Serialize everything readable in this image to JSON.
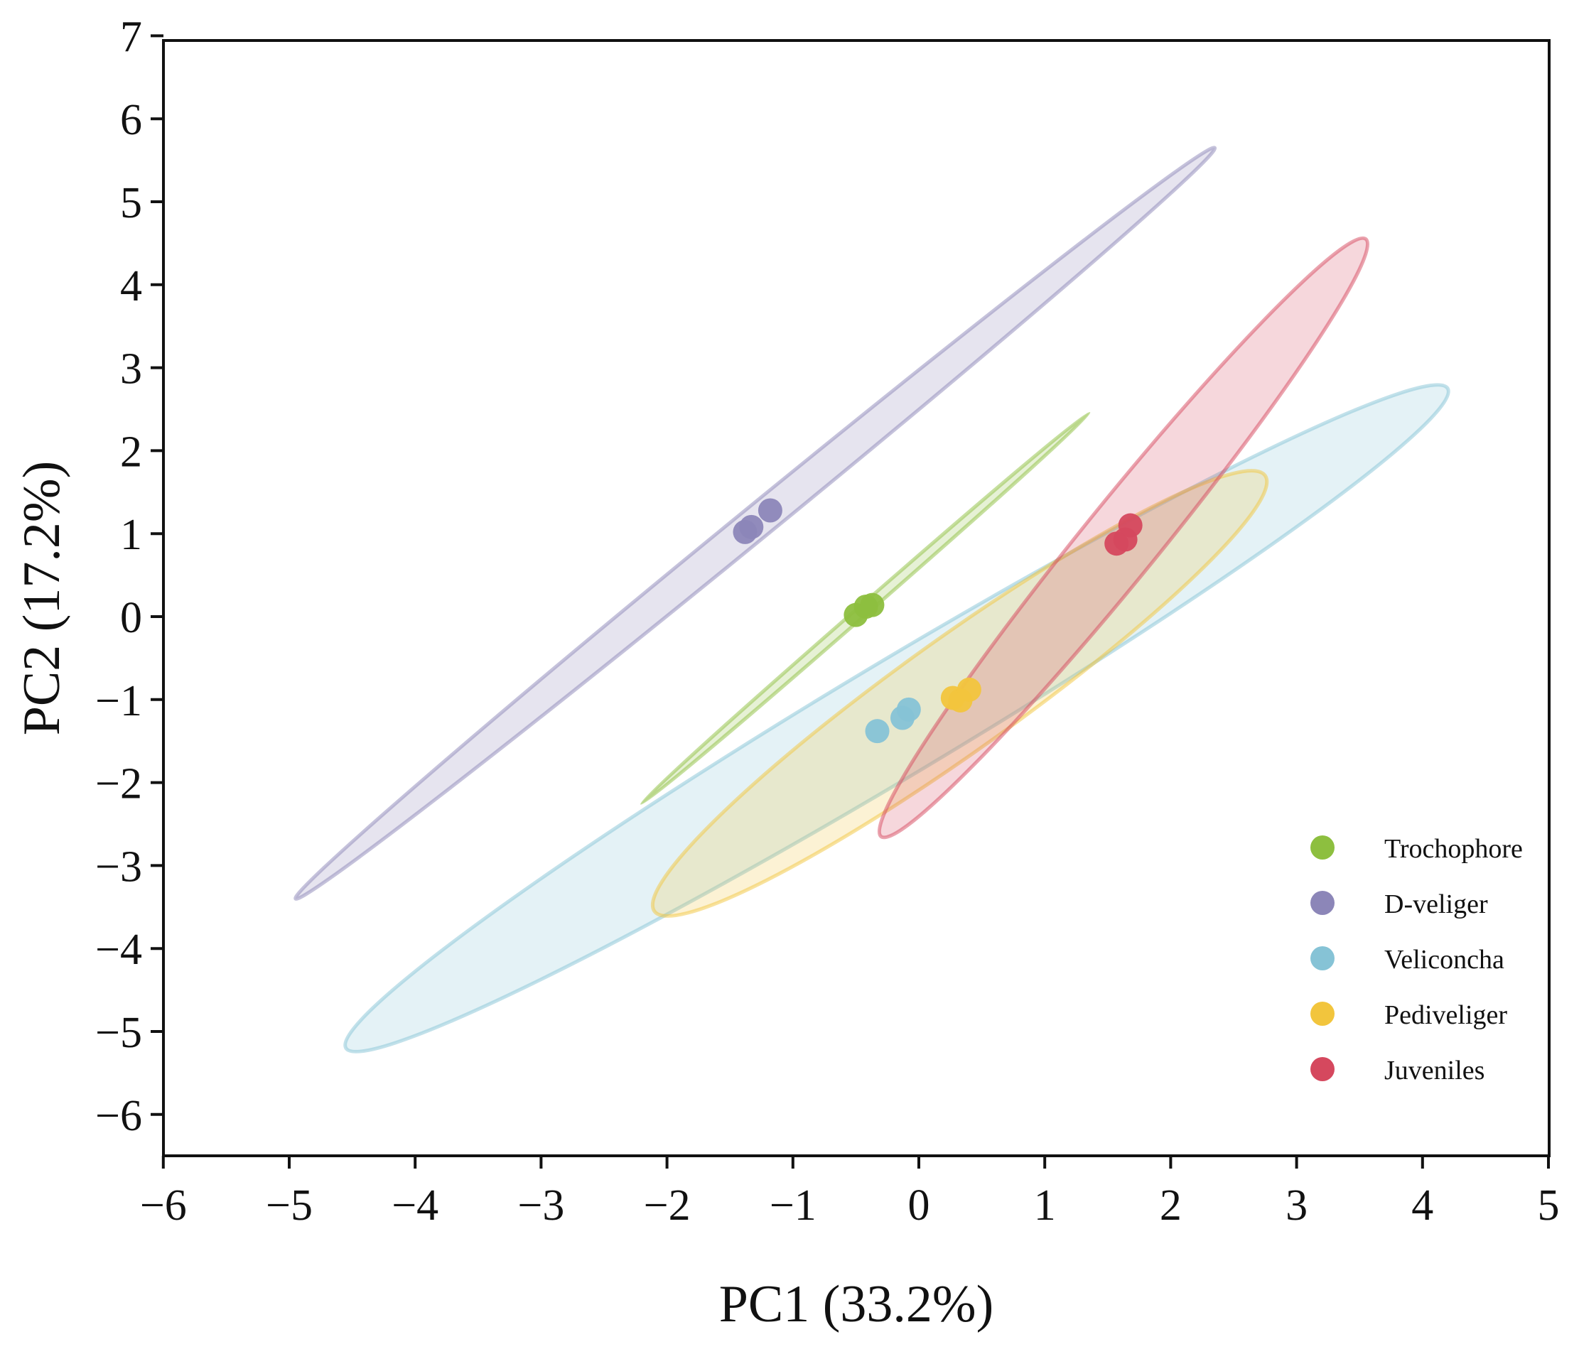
{
  "chart_data": {
    "type": "scatter",
    "title": "",
    "xlabel": "PC1 (33.2%)",
    "ylabel": "PC2 (17.2%)",
    "xlim": [
      -6,
      5
    ],
    "ylim": [
      -6.5,
      7
    ],
    "xticks": [
      -6,
      -5,
      -4,
      -3,
      -2,
      -1,
      0,
      1,
      2,
      3,
      4,
      5
    ],
    "yticks": [
      -6,
      -5,
      -4,
      -3,
      -2,
      -1,
      0,
      1,
      2,
      3,
      4,
      5,
      6,
      7
    ],
    "xtick_labels": [
      "−6",
      "−5",
      "−4",
      "−3",
      "−2",
      "−1",
      "0",
      "1",
      "2",
      "3",
      "4",
      "5"
    ],
    "ytick_labels": [
      "−6",
      "−5",
      "−4",
      "−3",
      "−2",
      "−1",
      "0",
      "1",
      "2",
      "3",
      "4",
      "5",
      "6",
      "7"
    ],
    "grid": false,
    "legend_position": "bottom-right",
    "series": [
      {
        "name": "Trochophore",
        "color": "#8dbf3f",
        "points": [
          [
            -0.5,
            0.02
          ],
          [
            -0.42,
            0.12
          ],
          [
            -0.37,
            0.14
          ]
        ],
        "ellipse": {
          "center": [
            -0.43,
            0.1
          ],
          "endpoint_a": [
            1.35,
            2.45
          ],
          "endpoint_b": [
            -2.2,
            -2.25
          ],
          "minor_semi_axis": 0.04
        }
      },
      {
        "name": "D-veliger",
        "color": "#8c86b8",
        "points": [
          [
            -1.38,
            1.02
          ],
          [
            -1.33,
            1.08
          ],
          [
            -1.18,
            1.28
          ]
        ],
        "ellipse": {
          "center": [
            -1.3,
            1.13
          ],
          "endpoint_a": [
            2.35,
            5.65
          ],
          "endpoint_b": [
            -4.95,
            -3.4
          ],
          "minor_semi_axis": 0.13
        }
      },
      {
        "name": "Veliconcha",
        "color": "#86c3d6",
        "points": [
          [
            -0.33,
            -1.38
          ],
          [
            -0.13,
            -1.22
          ],
          [
            -0.08,
            -1.12
          ]
        ],
        "ellipse": {
          "center": [
            -0.18,
            -1.24
          ],
          "endpoint_a": [
            4.2,
            2.75
          ],
          "endpoint_b": [
            -4.55,
            -5.2
          ],
          "minor_semi_axis": 0.45
        }
      },
      {
        "name": "Pediveliger",
        "color": "#f2c53d",
        "points": [
          [
            0.27,
            -0.98
          ],
          [
            0.33,
            -1.01
          ],
          [
            0.4,
            -0.88
          ]
        ],
        "ellipse": {
          "center": [
            0.33,
            -0.96
          ],
          "endpoint_a": [
            2.75,
            1.7
          ],
          "endpoint_b": [
            -2.1,
            -3.55
          ],
          "minor_semi_axis": 0.45
        }
      },
      {
        "name": "Juveniles",
        "color": "#d5485e",
        "points": [
          [
            1.57,
            0.88
          ],
          [
            1.64,
            0.93
          ],
          [
            1.68,
            1.1
          ]
        ],
        "ellipse": {
          "center": [
            1.63,
            0.97
          ],
          "endpoint_a": [
            3.55,
            4.55
          ],
          "endpoint_b": [
            -0.3,
            -2.65
          ],
          "minor_semi_axis": 0.3
        }
      }
    ]
  }
}
